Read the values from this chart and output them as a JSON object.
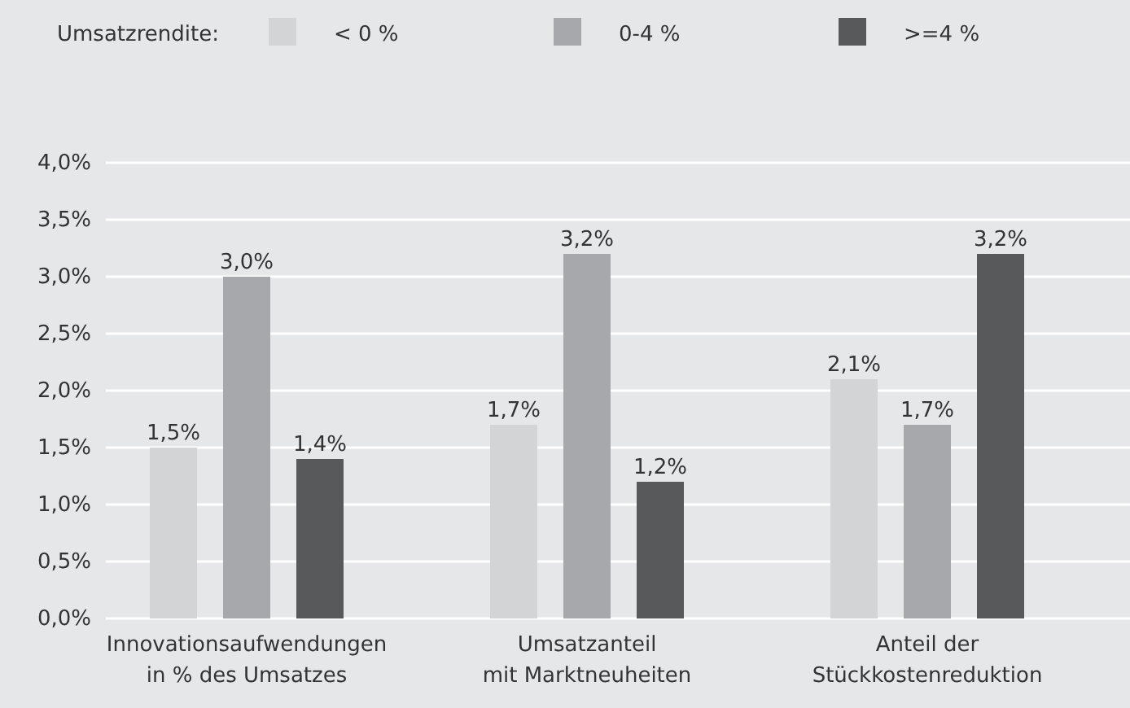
{
  "chart_data": {
    "type": "bar",
    "legend_title": "Umsatzrendite:",
    "legend": "top",
    "grid": "y",
    "categories": [
      "Innovationsaufwendungen\nin % des Umsatzes",
      "Umsatzanteil\nmit Marktneuheiten",
      "Anteil der\nStückkostenreduktion"
    ],
    "series": [
      {
        "name": "< 0 %",
        "color": "#d3d4d6",
        "values": [
          1.5,
          1.7,
          2.1
        ],
        "value_labels": [
          "1,5%",
          "1,7%",
          "2,1%"
        ]
      },
      {
        "name": "0-4 %",
        "color": "#a7a8ab",
        "values": [
          3.0,
          3.2,
          1.7
        ],
        "value_labels": [
          "3,0%",
          "3,2%",
          "1,7%"
        ]
      },
      {
        "name": ">=4 %",
        "color": "#58595b",
        "values": [
          1.4,
          1.2,
          3.2
        ],
        "value_labels": [
          "1,4%",
          "1,2%",
          "3,2%"
        ]
      }
    ],
    "ylim": [
      0,
      4
    ],
    "yticks": [
      {
        "value": 0,
        "label": "0,0%"
      },
      {
        "value": 0.5,
        "label": "0,5%"
      },
      {
        "value": 1,
        "label": "1,0%"
      },
      {
        "value": 1.5,
        "label": "1,5%"
      },
      {
        "value": 2,
        "label": "2,0%"
      },
      {
        "value": 2.5,
        "label": "2,5%"
      },
      {
        "value": 3,
        "label": "3,0%"
      },
      {
        "value": 3.5,
        "label": "3,5%"
      },
      {
        "value": 4,
        "label": "4,0%"
      }
    ]
  }
}
